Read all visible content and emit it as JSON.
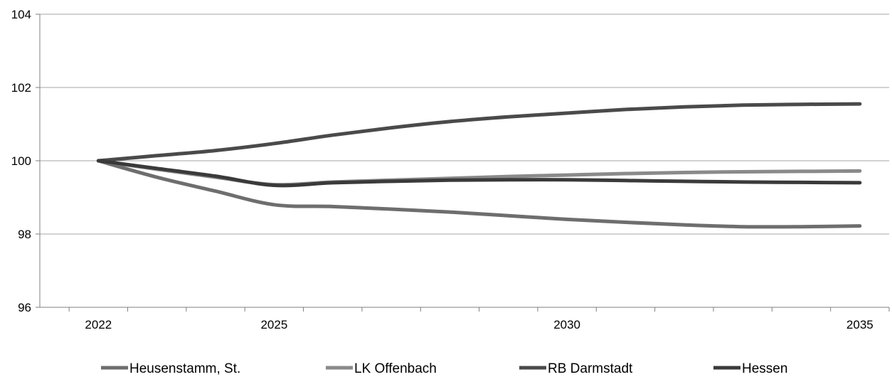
{
  "chart_data": {
    "type": "line",
    "title": "",
    "xlabel": "",
    "ylabel": "",
    "x": [
      2022,
      2023,
      2024,
      2025,
      2026,
      2027,
      2028,
      2029,
      2030,
      2031,
      2032,
      2033,
      2034,
      2035
    ],
    "x_tick_labels": [
      "2022",
      "2025",
      "2030",
      "2035"
    ],
    "x_tick_values": [
      2022,
      2025,
      2030,
      2035
    ],
    "ylim": [
      96,
      104
    ],
    "y_ticks": [
      96,
      98,
      100,
      102,
      104
    ],
    "y_tick_labels": [
      "96",
      "98",
      "100",
      "102",
      "104"
    ],
    "grid": "horizontal",
    "legend_position": "bottom",
    "series": [
      {
        "name": "Heusenstamm, St.",
        "color": "#6e6e6e",
        "values": [
          100,
          99.55,
          99.17,
          98.8,
          98.75,
          98.68,
          98.6,
          98.5,
          98.4,
          98.32,
          98.25,
          98.2,
          98.2,
          98.22
        ]
      },
      {
        "name": "LK Offenbach",
        "color": "#8a8a8a",
        "values": [
          100,
          99.77,
          99.55,
          99.35,
          99.42,
          99.47,
          99.52,
          99.57,
          99.61,
          99.65,
          99.68,
          99.7,
          99.71,
          99.72
        ]
      },
      {
        "name": "RB Darmstadt",
        "color": "#4a4a4a",
        "values": [
          100,
          100.14,
          100.28,
          100.47,
          100.7,
          100.9,
          101.07,
          101.2,
          101.3,
          101.4,
          101.47,
          101.52,
          101.54,
          101.55
        ]
      },
      {
        "name": "Hessen",
        "color": "#3a3a3a",
        "values": [
          100,
          99.79,
          99.58,
          99.33,
          99.4,
          99.44,
          99.47,
          99.48,
          99.48,
          99.46,
          99.44,
          99.42,
          99.41,
          99.4
        ]
      }
    ]
  }
}
